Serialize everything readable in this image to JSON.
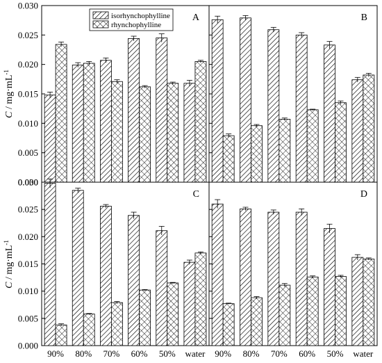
{
  "chart_data": {
    "type": "bar",
    "categories": [
      "90%",
      "80%",
      "70%",
      "60%",
      "50%",
      "water"
    ],
    "ylabel_var": "C",
    "ylabel_unit": " / mg·mL",
    "ylabel_exp": "-1",
    "ylim": [
      0,
      0.03
    ],
    "yticks": [
      "0.000",
      "0.005",
      "0.010",
      "0.015",
      "0.020",
      "0.025",
      "0.030"
    ],
    "grid": false,
    "legend_position": "top-center of panel A",
    "series_styles": [
      {
        "name": "isorhynchophylline",
        "pattern": "diagonal-hatch"
      },
      {
        "name": "rhynchophylline",
        "pattern": "crosshatch"
      }
    ],
    "panels": [
      {
        "label": "A",
        "series": [
          {
            "name": "isorhynchophylline",
            "values": [
              0.0148,
              0.0199,
              0.0207,
              0.0244,
              0.0245,
              0.0168
            ],
            "errors": [
              0.0005,
              0.0004,
              0.0004,
              0.0004,
              0.0007,
              0.0005
            ]
          },
          {
            "name": "rhynchophylline",
            "values": [
              0.0234,
              0.0202,
              0.0171,
              0.0162,
              0.0168,
              0.0205
            ],
            "errors": [
              0.0004,
              0.0003,
              0.0003,
              0.0002,
              0.0002,
              0.0002
            ]
          }
        ]
      },
      {
        "label": "B",
        "series": [
          {
            "name": "isorhynchophylline",
            "values": [
              0.0276,
              0.0279,
              0.0259,
              0.025,
              0.0233,
              0.0174
            ],
            "errors": [
              0.0006,
              0.0004,
              0.0004,
              0.0004,
              0.0006,
              0.0004
            ]
          },
          {
            "name": "rhynchophylline",
            "values": [
              0.0079,
              0.0096,
              0.0107,
              0.0123,
              0.0135,
              0.0182
            ],
            "errors": [
              0.0003,
              0.0002,
              0.0002,
              0.0001,
              0.0003,
              0.0003
            ]
          }
        ]
      },
      {
        "label": "C",
        "series": [
          {
            "name": "isorhynchophylline",
            "values": [
              0.0298,
              0.0285,
              0.0256,
              0.0239,
              0.0211,
              0.0153
            ],
            "errors": [
              0.0008,
              0.0004,
              0.0003,
              0.0006,
              0.0008,
              0.0004
            ]
          },
          {
            "name": "rhynchophylline",
            "values": [
              0.0038,
              0.0058,
              0.0079,
              0.0102,
              0.0115,
              0.017
            ],
            "errors": [
              0.0002,
              0.0001,
              0.0002,
              0.0001,
              0.0001,
              0.0002
            ]
          }
        ]
      },
      {
        "label": "D",
        "series": [
          {
            "name": "isorhynchophylline",
            "values": [
              0.026,
              0.0251,
              0.0245,
              0.0245,
              0.0215,
              0.0162
            ],
            "errors": [
              0.0008,
              0.0003,
              0.0004,
              0.0006,
              0.0008,
              0.0005
            ]
          },
          {
            "name": "rhynchophylline",
            "values": [
              0.0077,
              0.0088,
              0.0111,
              0.0126,
              0.0127,
              0.0159
            ],
            "errors": [
              0.0001,
              0.0002,
              0.0003,
              0.0002,
              0.0002,
              0.0002
            ]
          }
        ]
      }
    ]
  }
}
